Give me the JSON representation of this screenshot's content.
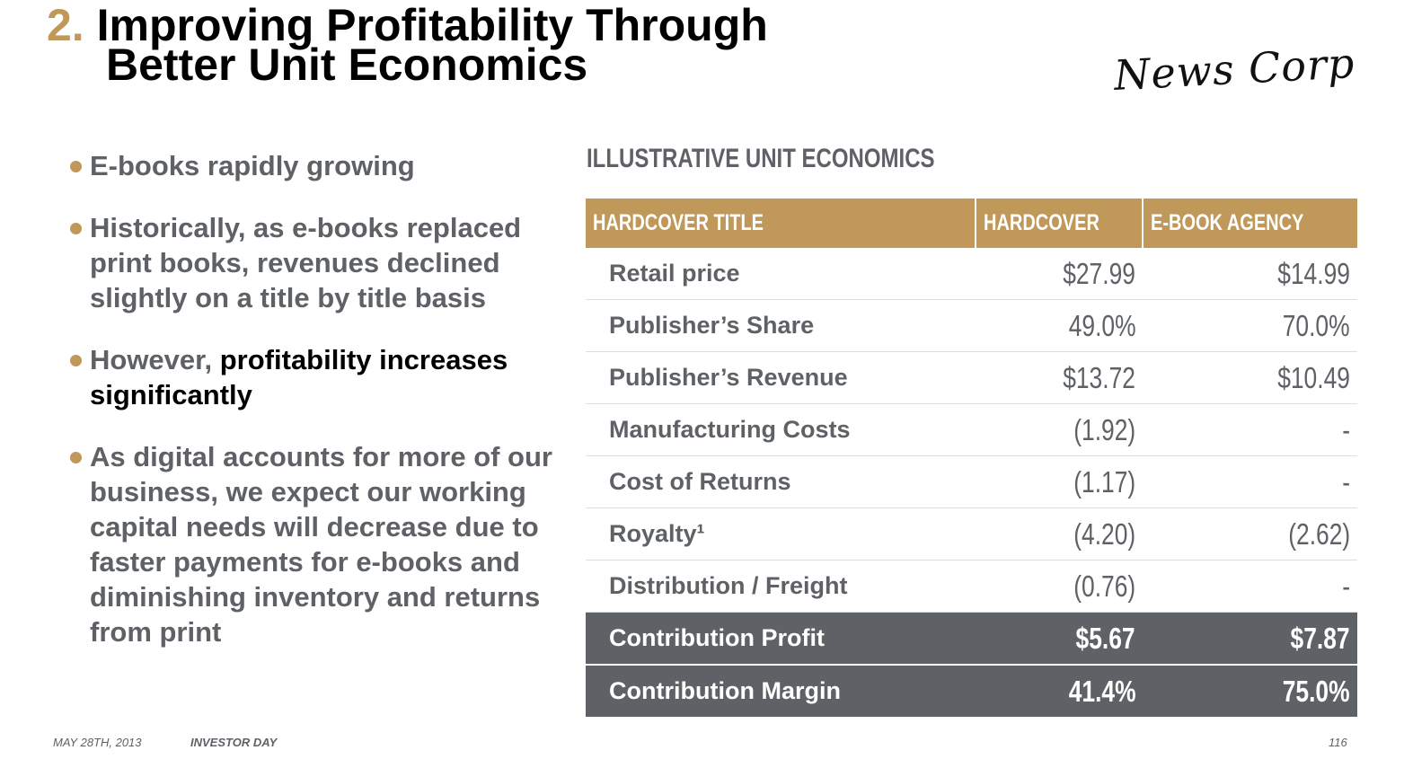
{
  "header": {
    "number": "2.",
    "title_line1": "Improving Profitability Through",
    "title_line2": "Better Unit Economics",
    "logo": "News Corp"
  },
  "bullets": [
    {
      "text": "E-books rapidly growing",
      "emphasis": ""
    },
    {
      "text": "Historically, as e-books replaced print books, revenues declined slightly on a title by title basis",
      "emphasis": ""
    },
    {
      "text": "However, ",
      "emphasis": "profitability increases significantly"
    },
    {
      "text": "As digital accounts for more of our business, we expect our working capital needs will decrease due to faster payments for e-books and diminishing inventory and returns from print",
      "emphasis": ""
    }
  ],
  "table": {
    "section_title": "ILLUSTRATIVE UNIT ECONOMICS",
    "headers": [
      "HARDCOVER TITLE",
      "HARDCOVER",
      "E-BOOK AGENCY"
    ],
    "rows": [
      [
        "Retail price",
        "$27.99",
        "$14.99"
      ],
      [
        "Publisher’s Share",
        "49.0%",
        "70.0%"
      ],
      [
        "Publisher’s Revenue",
        "$13.72",
        "$10.49"
      ],
      [
        "Manufacturing Costs",
        "(1.92)",
        "-"
      ],
      [
        "Cost of Returns",
        "(1.17)",
        "-"
      ],
      [
        "Royalty¹",
        "(4.20)",
        "(2.62)"
      ],
      [
        "Distribution / Freight",
        "(0.76)",
        "-"
      ]
    ],
    "totals": [
      [
        "Contribution Profit",
        "$5.67",
        "$7.87"
      ],
      [
        "Contribution Margin",
        "41.4%",
        "75.0%"
      ]
    ]
  },
  "footer": {
    "date": "MAY 28TH, 2013",
    "event": "INVESTOR DAY",
    "page": "116"
  },
  "colors": {
    "accent": "#c0985a",
    "text_gray": "#5e6165"
  }
}
